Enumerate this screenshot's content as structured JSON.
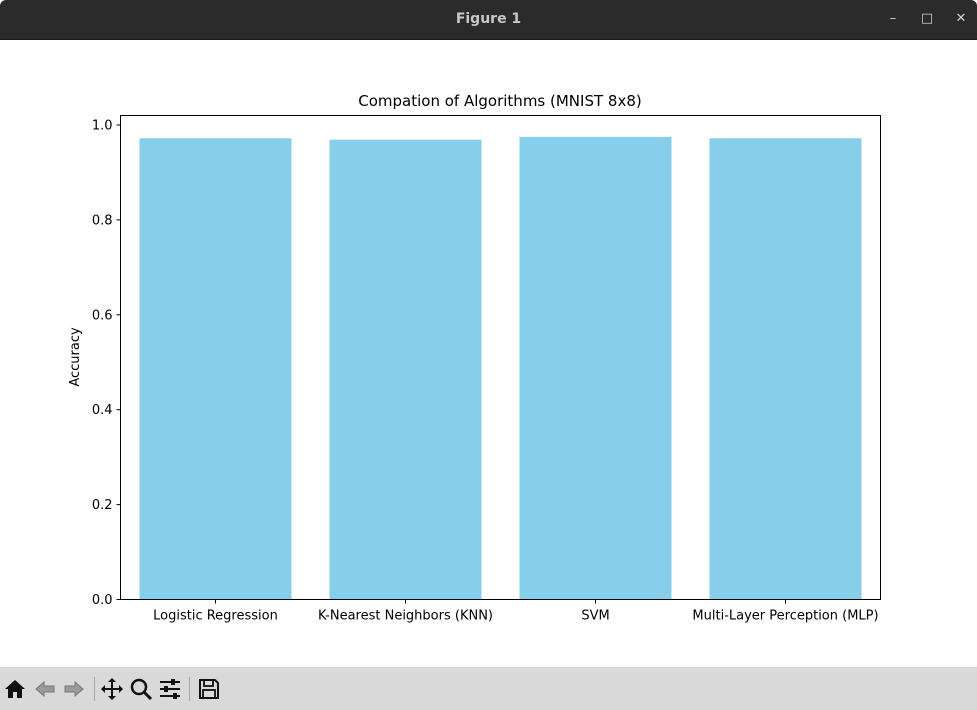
{
  "window": {
    "title": "Figure 1"
  },
  "toolbar": {
    "buttons": [
      {
        "name": "home-icon"
      },
      {
        "name": "back-icon"
      },
      {
        "name": "forward-icon"
      },
      {
        "name": "pan-icon"
      },
      {
        "name": "zoom-icon"
      },
      {
        "name": "configure-subplots-icon"
      },
      {
        "name": "save-icon"
      }
    ]
  },
  "colors": {
    "bar": "#87CEEB",
    "axes": "#000000",
    "titlebar": "#2b2b2b",
    "toolbar": "#d9d9d9"
  },
  "chart_data": {
    "type": "bar",
    "title": "Compation of Algorithms (MNIST 8x8)",
    "xlabel": "",
    "ylabel": "Accuracy",
    "categories": [
      "Logistic Regression",
      "K-Nearest Neighbors (KNN)",
      "SVM",
      "Multi-Layer Perception (MLP)"
    ],
    "values": [
      0.972,
      0.969,
      0.975,
      0.972
    ],
    "ylim": [
      0,
      1.02
    ],
    "yticks": [
      "0.0",
      "0.2",
      "0.4",
      "0.6",
      "0.8",
      "1.0"
    ],
    "grid": false,
    "legend": null
  }
}
